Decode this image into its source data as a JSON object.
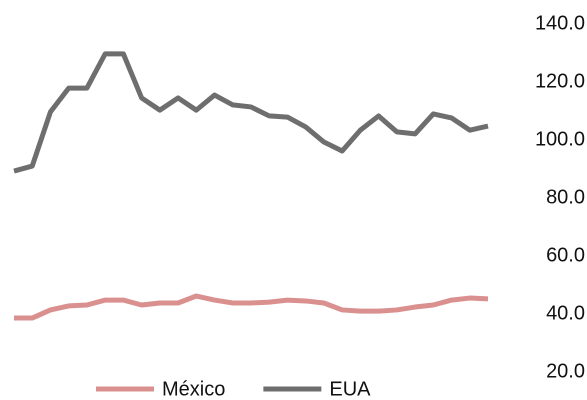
{
  "chart_data": {
    "type": "line",
    "categories": [
      null,
      null,
      null,
      null,
      null,
      null,
      null,
      null,
      null,
      null,
      null,
      null,
      null,
      null,
      null,
      null,
      null,
      null,
      null,
      null,
      null,
      null,
      null,
      null,
      null,
      null,
      null
    ],
    "series": [
      {
        "name": "México",
        "color": "#d9908f",
        "values": [
          38.6,
          38.6,
          41.4,
          42.8,
          43.1,
          44.8,
          44.8,
          43.1,
          43.8,
          43.8,
          46.2,
          44.8,
          43.8,
          43.8,
          44.1,
          44.8,
          44.5,
          43.8,
          41.4,
          41.0,
          41.0,
          41.4,
          42.4,
          43.1,
          44.8,
          45.5,
          45.2
        ]
      },
      {
        "name": "EUA",
        "color": "#6e6e6e",
        "values": [
          89.3,
          91.0,
          109.7,
          117.9,
          117.9,
          129.7,
          129.7,
          114.5,
          110.3,
          114.5,
          110.3,
          115.5,
          112.1,
          111.4,
          108.3,
          107.9,
          104.5,
          99.3,
          96.2,
          103.4,
          108.3,
          102.8,
          102.1,
          109.0,
          107.6,
          103.4,
          104.8
        ]
      }
    ],
    "ylim": [
      20,
      140
    ],
    "yticks": [
      {
        "value": 20,
        "label": "20.0"
      },
      {
        "value": 40,
        "label": "40.0"
      },
      {
        "value": 60,
        "label": "60.0"
      },
      {
        "value": 80,
        "label": "80.0"
      },
      {
        "value": 100,
        "label": "100.0"
      },
      {
        "value": 120,
        "label": "120.0"
      },
      {
        "value": 140,
        "label": "140.0"
      }
    ],
    "y_axis_side": "right",
    "grid": false,
    "legend": "bottom"
  }
}
